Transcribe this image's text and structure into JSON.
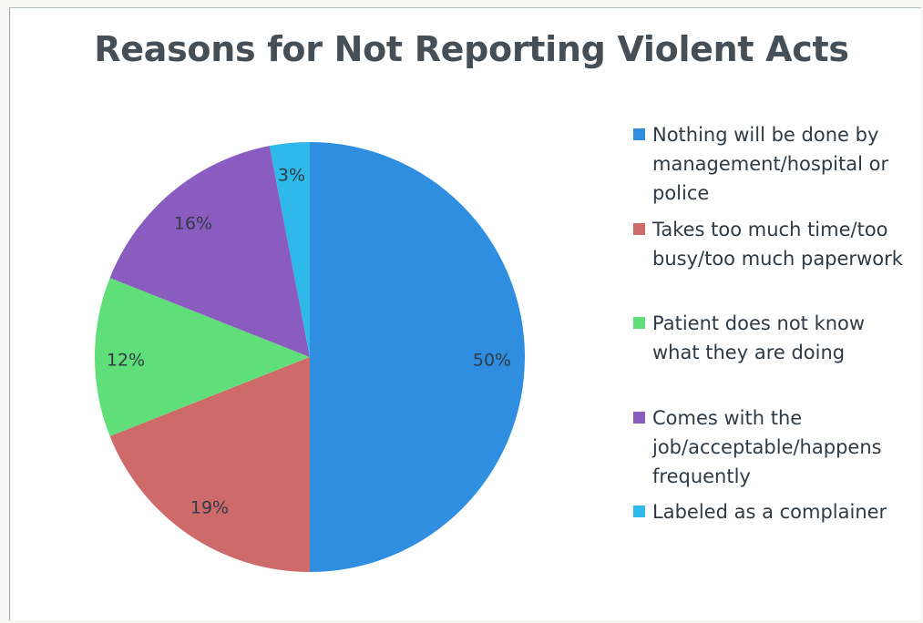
{
  "chart_data": {
    "type": "pie",
    "title": "Reasons for Not Reporting Violent Acts",
    "slices": [
      {
        "label": "Nothing will be done by management/hospital or police",
        "value": 50,
        "display": "50%",
        "color": "#2f8ee0"
      },
      {
        "label": "Takes too much time/too busy/too much paperwork",
        "value": 19,
        "display": "19%",
        "color": "#cf6a6b"
      },
      {
        "label": "Patient does not know what they are doing",
        "value": 12,
        "display": "12%",
        "color": "#5fde79"
      },
      {
        "label": "Comes with the job/acceptable/happens frequently",
        "value": 16,
        "display": "16%",
        "color": "#8a5cbf"
      },
      {
        "label": "Labeled as a complainer",
        "value": 3,
        "display": "3%",
        "color": "#2fb8ea"
      }
    ],
    "start_angle": "12 o'clock",
    "direction": "clockwise",
    "legend_position": "right"
  }
}
